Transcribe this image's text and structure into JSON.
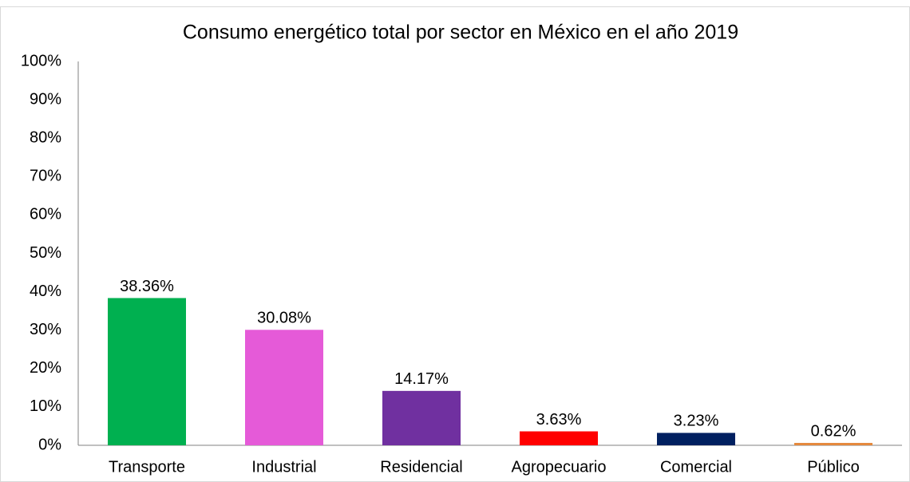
{
  "chart_data": {
    "type": "bar",
    "title": "Consumo energético total por sector en México en el año 2019",
    "categories": [
      "Transporte",
      "Industrial",
      "Residencial",
      "Agropecuario",
      "Comercial",
      "Público"
    ],
    "values": [
      38.36,
      30.08,
      14.17,
      3.63,
      3.23,
      0.62
    ],
    "value_labels": [
      "38.36%",
      "30.08%",
      "14.17%",
      "3.63%",
      "3.23%",
      "0.62%"
    ],
    "colors": [
      "#00b050",
      "#e55ad8",
      "#7030a0",
      "#ff0000",
      "#002060",
      "#e4883c"
    ],
    "ylim": [
      0,
      100
    ],
    "yticks": [
      {
        "value": 0,
        "label": "0%"
      },
      {
        "value": 10,
        "label": "10%"
      },
      {
        "value": 20,
        "label": "20%"
      },
      {
        "value": 30,
        "label": "30%"
      },
      {
        "value": 40,
        "label": "40%"
      },
      {
        "value": 50,
        "label": "50%"
      },
      {
        "value": 60,
        "label": "60%"
      },
      {
        "value": 70,
        "label": "70%"
      },
      {
        "value": 80,
        "label": "80%"
      },
      {
        "value": 90,
        "label": "90%"
      },
      {
        "value": 100,
        "label": "100%"
      }
    ],
    "grid": false
  }
}
